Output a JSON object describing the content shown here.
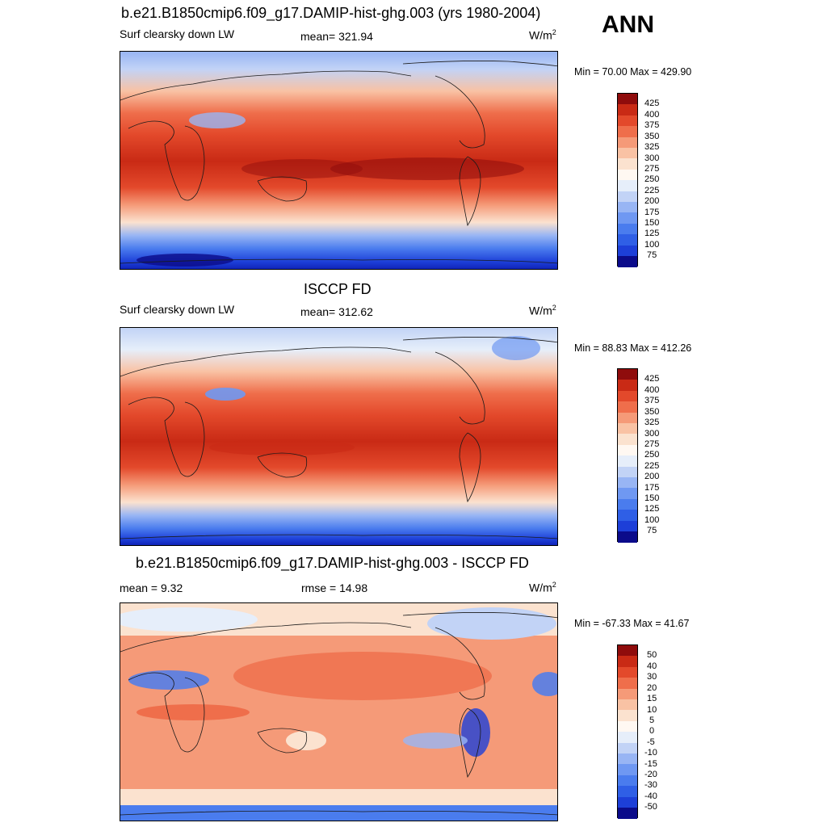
{
  "season": "ANN",
  "unit_base": "W/m",
  "unit_exp": "2",
  "panels": [
    {
      "title": "b.e21.B1850cmip6.f09_g17.DAMIP-hist-ghg.003 (yrs 1980-2004)",
      "left_label": "Surf clearsky down LW",
      "center_label": "mean= 321.94",
      "minmax": "Min =  70.00 Max = 429.90",
      "colorbar_levels": [
        "425",
        "400",
        "375",
        "350",
        "325",
        "300",
        "275",
        "250",
        "225",
        "200",
        "175",
        "150",
        "125",
        "100",
        "75"
      ]
    },
    {
      "title": "ISCCP FD",
      "left_label": "Surf clearsky down LW",
      "center_label": "mean= 312.62",
      "minmax": "Min =  88.83 Max = 412.26",
      "colorbar_levels": [
        "425",
        "400",
        "375",
        "350",
        "325",
        "300",
        "275",
        "250",
        "225",
        "200",
        "175",
        "150",
        "125",
        "100",
        "75"
      ]
    },
    {
      "title": "b.e21.B1850cmip6.f09_g17.DAMIP-hist-ghg.003 - ISCCP FD",
      "left_label": "mean =   9.32",
      "center_label": "rmse =   14.98",
      "minmax": "Min = -67.33 Max =  41.67",
      "colorbar_levels": [
        "50",
        "40",
        "30",
        "20",
        "15",
        "10",
        "5",
        "0",
        "-5",
        "-10",
        "-15",
        "-20",
        "-30",
        "-40",
        "-50"
      ]
    }
  ],
  "colors": {
    "abs_scale": [
      "#0b0b8a",
      "#0d1fb3",
      "#1d3fd8",
      "#2f5fe6",
      "#4a7cee",
      "#6f98f2",
      "#98b5f4",
      "#c2d3f6",
      "#e6eefa",
      "#fbe2cf",
      "#f9c2a4",
      "#f59a78",
      "#ef6e4b",
      "#e3492b",
      "#c92a15",
      "#8f0c0c"
    ],
    "diff_scale": [
      "#0b0b8a",
      "#0d1fb3",
      "#1d3fd8",
      "#2f5fe6",
      "#4a7cee",
      "#6f98f2",
      "#98b5f4",
      "#c2d3f6",
      "#e6eefa",
      "#fbe2cf",
      "#f9c2a4",
      "#f59a78",
      "#ef6e4b",
      "#e3492b",
      "#c92a15",
      "#8f0c0c"
    ],
    "coast": "#1a1a1a"
  }
}
